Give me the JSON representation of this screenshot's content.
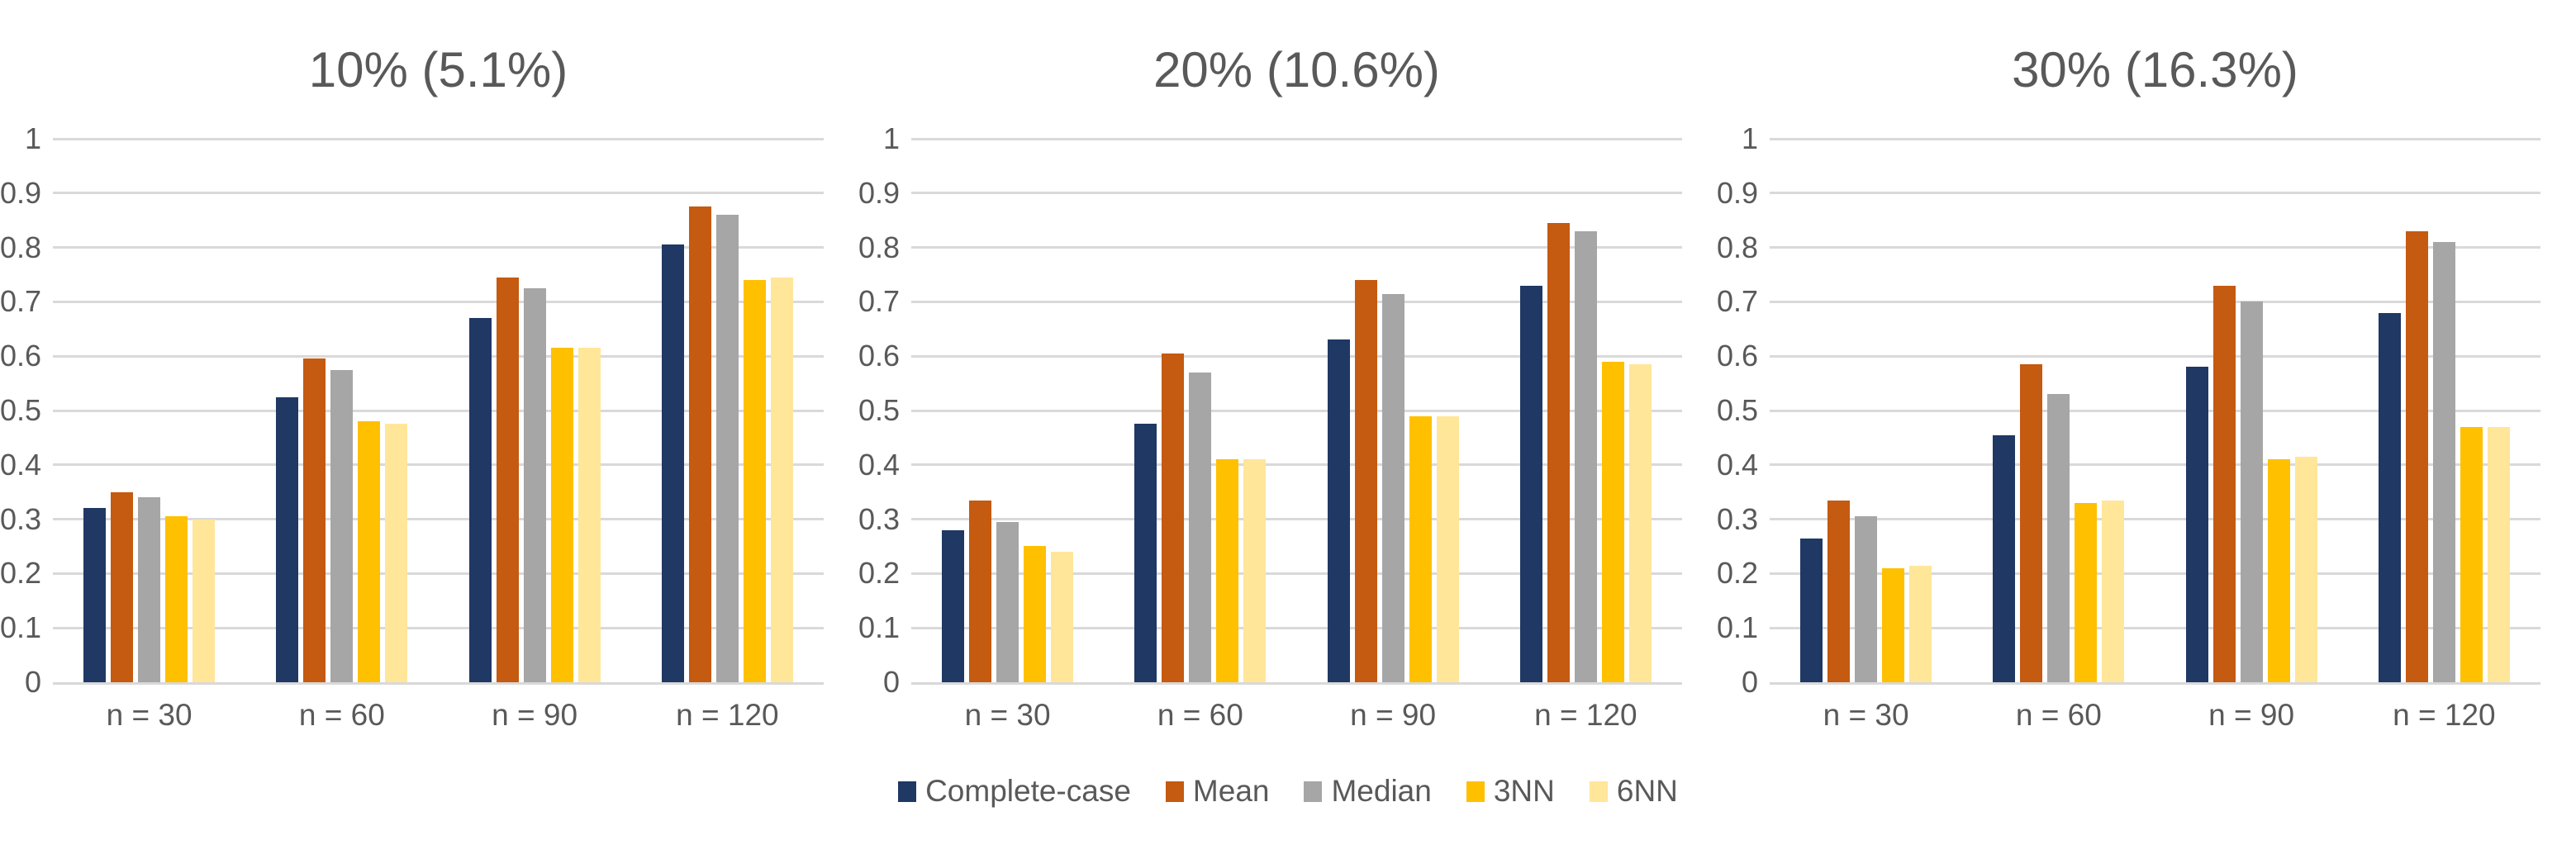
{
  "page": {
    "background": "#FFFFFF"
  },
  "colors": {
    "text": "#595959",
    "gridline": "#D9D9D9",
    "axis_line": "#D9D9D9"
  },
  "legend": {
    "position": "bottom-center",
    "items": [
      {
        "label": "Complete-case",
        "color": "#1F3864"
      },
      {
        "label": "Mean",
        "color": "#C55A11"
      },
      {
        "label": "Median",
        "color": "#A6A6A6"
      },
      {
        "label": "3NN",
        "color": "#FFC000"
      },
      {
        "label": "6NN",
        "color": "#FFE699"
      }
    ]
  },
  "chart_data": [
    {
      "type": "bar",
      "title": "10% (5.1%)",
      "categories": [
        "n = 30",
        "n = 60",
        "n = 90",
        "n = 120"
      ],
      "series": [
        {
          "name": "Complete-case",
          "color": "#1F3864",
          "values": [
            0.32,
            0.525,
            0.67,
            0.805
          ]
        },
        {
          "name": "Mean",
          "color": "#C55A11",
          "values": [
            0.35,
            0.595,
            0.745,
            0.875
          ]
        },
        {
          "name": "Median",
          "color": "#A6A6A6",
          "values": [
            0.34,
            0.575,
            0.725,
            0.86
          ]
        },
        {
          "name": "3NN",
          "color": "#FFC000",
          "values": [
            0.305,
            0.48,
            0.615,
            0.74
          ]
        },
        {
          "name": "6NN",
          "color": "#FFE699",
          "values": [
            0.3,
            0.475,
            0.615,
            0.745
          ]
        }
      ],
      "xlabel": "",
      "ylabel": "",
      "ylim": [
        0,
        1
      ],
      "yticks": [
        "0",
        "0.1",
        "0.2",
        "0.3",
        "0.4",
        "0.5",
        "0.6",
        "0.7",
        "0.8",
        "0.9",
        "1"
      ],
      "grid": true,
      "legend_position": "bottom-center"
    },
    {
      "type": "bar",
      "title": "20% (10.6%)",
      "categories": [
        "n = 30",
        "n = 60",
        "n = 90",
        "n = 120"
      ],
      "series": [
        {
          "name": "Complete-case",
          "color": "#1F3864",
          "values": [
            0.28,
            0.475,
            0.63,
            0.73
          ]
        },
        {
          "name": "Mean",
          "color": "#C55A11",
          "values": [
            0.335,
            0.605,
            0.74,
            0.845
          ]
        },
        {
          "name": "Median",
          "color": "#A6A6A6",
          "values": [
            0.295,
            0.57,
            0.715,
            0.83
          ]
        },
        {
          "name": "3NN",
          "color": "#FFC000",
          "values": [
            0.25,
            0.41,
            0.49,
            0.59
          ]
        },
        {
          "name": "6NN",
          "color": "#FFE699",
          "values": [
            0.24,
            0.41,
            0.49,
            0.585
          ]
        }
      ],
      "xlabel": "",
      "ylabel": "",
      "ylim": [
        0,
        1
      ],
      "yticks": [
        "0",
        "0.1",
        "0.2",
        "0.3",
        "0.4",
        "0.5",
        "0.6",
        "0.7",
        "0.8",
        "0.9",
        "1"
      ],
      "grid": true,
      "legend_position": "bottom-center"
    },
    {
      "type": "bar",
      "title": "30% (16.3%)",
      "categories": [
        "n = 30",
        "n = 60",
        "n = 90",
        "n = 120"
      ],
      "series": [
        {
          "name": "Complete-case",
          "color": "#1F3864",
          "values": [
            0.265,
            0.455,
            0.58,
            0.68
          ]
        },
        {
          "name": "Mean",
          "color": "#C55A11",
          "values": [
            0.335,
            0.585,
            0.73,
            0.83
          ]
        },
        {
          "name": "Median",
          "color": "#A6A6A6",
          "values": [
            0.305,
            0.53,
            0.7,
            0.81
          ]
        },
        {
          "name": "3NN",
          "color": "#FFC000",
          "values": [
            0.21,
            0.33,
            0.41,
            0.47
          ]
        },
        {
          "name": "6NN",
          "color": "#FFE699",
          "values": [
            0.215,
            0.335,
            0.415,
            0.47
          ]
        }
      ],
      "xlabel": "",
      "ylabel": "",
      "ylim": [
        0,
        1
      ],
      "yticks": [
        "0",
        "0.1",
        "0.2",
        "0.3",
        "0.4",
        "0.5",
        "0.6",
        "0.7",
        "0.8",
        "0.9",
        "1"
      ],
      "grid": true,
      "legend_position": "bottom-center"
    }
  ]
}
